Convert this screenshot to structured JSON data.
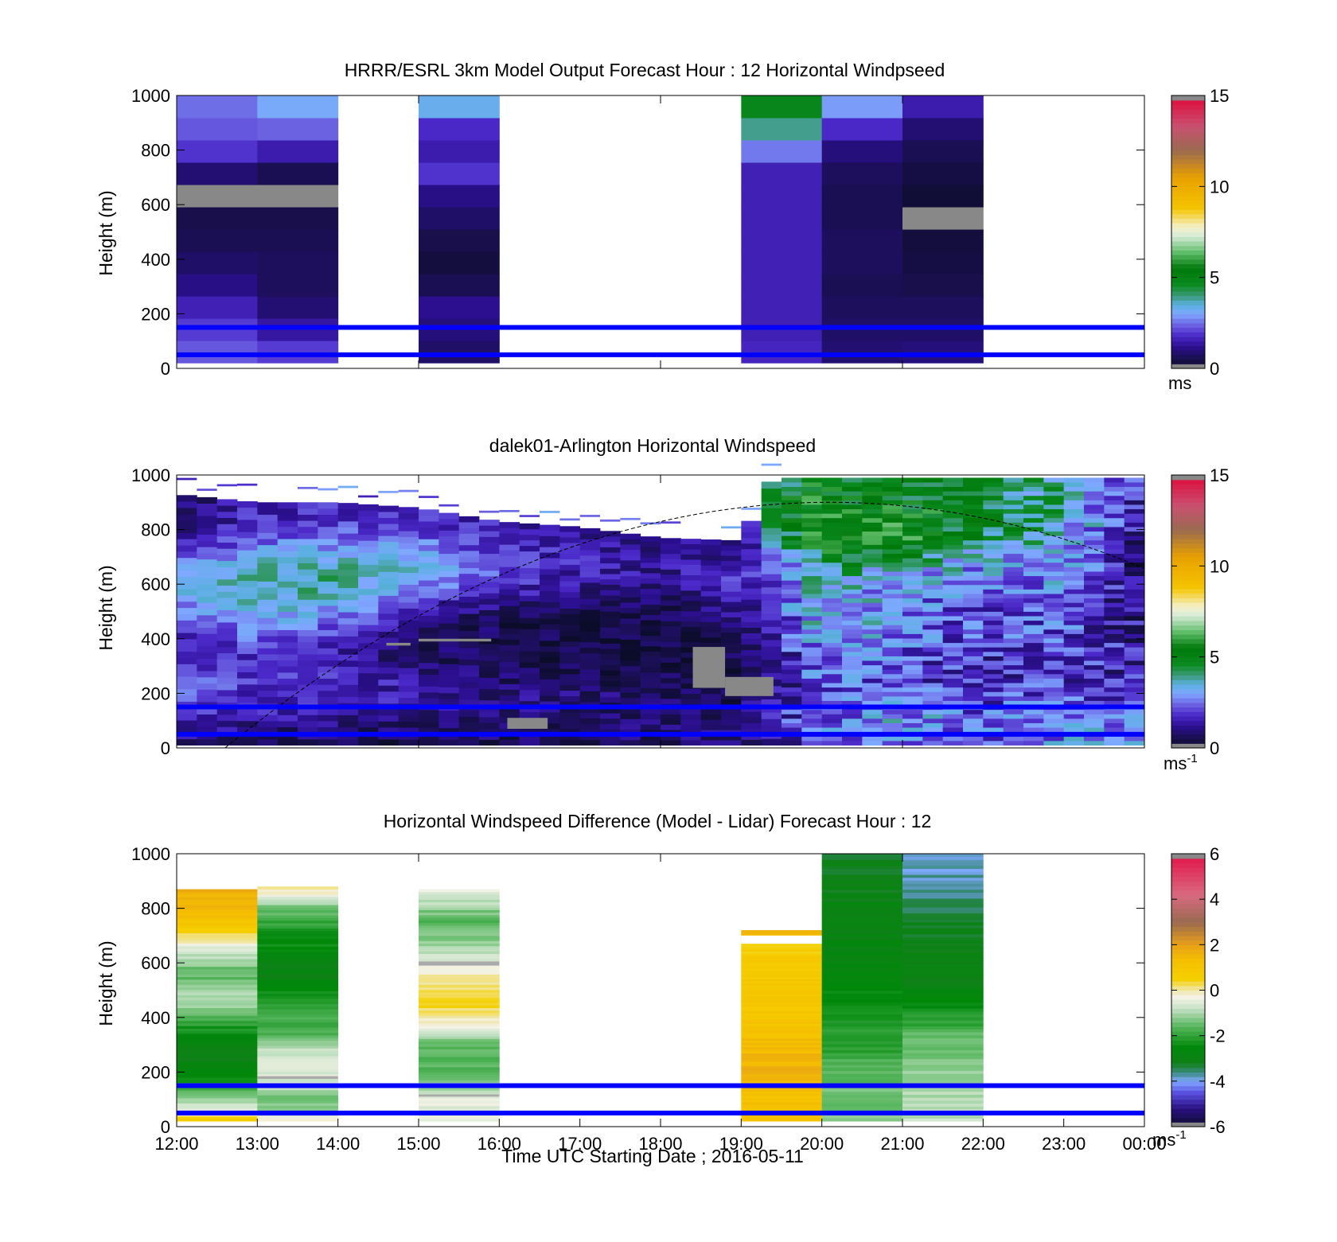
{
  "chart_data": [
    {
      "type": "heatmap",
      "title": "HRRR/ESRL 3km Model Output   Forecast Hour : 12 Horizontal Windpseed",
      "xlabel": "",
      "ylabel": "Height (m)",
      "xlim": [
        12,
        24
      ],
      "ylim": [
        0,
        1000
      ],
      "y_ticks": [
        "0",
        "200",
        "400",
        "600",
        "800",
        "1000"
      ],
      "colorbar": {
        "min": 0,
        "max": 15,
        "ticks": [
          "0",
          "5",
          "10",
          "15"
        ],
        "unit_label": "ms",
        "unit_sup": "",
        "palette": "speed"
      },
      "reference_lines_m": [
        50,
        150
      ],
      "cells": [
        {
          "t0": 12,
          "t1": 13,
          "z0": 20,
          "z1": 1000,
          "values": [
            2.3,
            2.0,
            1.6,
            1.1,
            0.8,
            0.6,
            0.5,
            "missing",
            0.9,
            1.9,
            2.3,
            2.5
          ]
        },
        {
          "t0": 13,
          "t1": 14,
          "z0": 20,
          "z1": 1000,
          "values": [
            2.0,
            1.4,
            0.9,
            0.7,
            0.7,
            0.6,
            0.5,
            "missing",
            0.6,
            1.5,
            2.4,
            3.1
          ]
        },
        {
          "t0": 15,
          "t1": 16,
          "z0": 20,
          "z1": 1000,
          "values": [
            0.8,
            1.0,
            1.2,
            0.6,
            0.3,
            0.5,
            0.8,
            1.1,
            1.9,
            1.5,
            1.8,
            3.3
          ]
        },
        {
          "t0": 19,
          "t1": 20,
          "z0": 20,
          "z1": 1000,
          "values": [
            1.7,
            1.6,
            1.6,
            1.6,
            1.6,
            1.6,
            1.6,
            1.6,
            1.6,
            2.6,
            3.9,
            4.8
          ]
        },
        {
          "t0": 20,
          "t1": 21,
          "z0": 20,
          "z1": 1000,
          "values": [
            0.9,
            0.8,
            0.7,
            0.6,
            0.7,
            0.7,
            0.6,
            0.6,
            0.7,
            1.0,
            1.8,
            2.9
          ]
        },
        {
          "t0": 21,
          "t1": 22,
          "z0": 20,
          "z1": 1000,
          "values": [
            1.0,
            0.8,
            0.7,
            0.5,
            0.4,
            0.3,
            "missing",
            0.2,
            0.4,
            0.6,
            0.9,
            1.5
          ]
        }
      ]
    },
    {
      "type": "heatmap",
      "title": "dalek01-Arlington  Horizontal Windspeed",
      "xlabel": "",
      "ylabel": "Height (m)",
      "xlim": [
        12,
        24
      ],
      "ylim": [
        0,
        1000
      ],
      "y_ticks": [
        "0",
        "200",
        "400",
        "600",
        "800",
        "1000"
      ],
      "colorbar": {
        "min": 0,
        "max": 15,
        "ticks": [
          "0",
          "5",
          "10",
          "15"
        ],
        "unit_label": "ms",
        "unit_sup": "-1",
        "palette": "speed"
      },
      "reference_lines_m": [
        50,
        150
      ],
      "profile_start": 12.0,
      "profile_end": 23.9,
      "profile_step_h": 0.25,
      "sample_heights_m": [
        20,
        60,
        100,
        140,
        180,
        220,
        260,
        300,
        340,
        380,
        420,
        460,
        500,
        540,
        580,
        620,
        660,
        700,
        740,
        780,
        820,
        860,
        900,
        940
      ],
      "keyframes": [
        {
          "t": 12.0,
          "top": 930,
          "speeds": [
            1.2,
            1.2,
            1.5,
            2.0,
            2.4,
            2.6,
            2.3,
            1.9,
            1.7,
            1.6,
            1.8,
            2.1,
            2.5,
            2.8,
            3.0,
            3.0,
            2.6,
            2.1,
            1.6,
            1.2,
            0.9,
            0.8,
            0.7,
            0.6
          ]
        },
        {
          "t": 13.0,
          "top": 900,
          "speeds": [
            0.8,
            1.0,
            1.3,
            1.6,
            1.7,
            1.8,
            1.8,
            1.7,
            1.9,
            2.2,
            2.6,
            3.0,
            3.3,
            3.6,
            3.8,
            3.8,
            3.6,
            3.2,
            2.7,
            2.2,
            1.9,
            1.7,
            1.6,
            1.5
          ]
        },
        {
          "t": 14.0,
          "top": 900,
          "speeds": [
            0.7,
            0.9,
            1.2,
            1.5,
            1.7,
            1.8,
            1.8,
            1.6,
            1.5,
            1.7,
            2.0,
            2.5,
            2.9,
            3.3,
            3.7,
            3.9,
            3.8,
            3.4,
            2.9,
            2.4,
            2.0,
            1.8,
            1.7,
            1.6
          ]
        },
        {
          "t": 15.0,
          "top": 880,
          "speeds": [
            0.6,
            0.8,
            1.0,
            1.3,
            1.5,
            1.4,
            1.2,
            1.0,
            0.8,
            0.7,
            0.8,
            1.1,
            1.5,
            2.0,
            2.6,
            3.0,
            3.2,
            3.0,
            2.7,
            2.3,
            2.0,
            1.8,
            1.6,
            1.5
          ]
        },
        {
          "t": 16.0,
          "top": 830,
          "speeds": [
            0.7,
            0.8,
            0.9,
            1.0,
            1.1,
            1.0,
            0.8,
            0.6,
            0.5,
            0.4,
            0.5,
            0.6,
            0.9,
            1.3,
            1.7,
            2.0,
            2.1,
            2.0,
            1.9,
            1.7,
            1.5,
            1.4,
            1.3,
            1.2
          ]
        },
        {
          "t": 17.0,
          "top": 810,
          "speeds": [
            0.8,
            0.8,
            0.9,
            1.0,
            1.0,
            0.9,
            0.7,
            0.5,
            0.4,
            0.4,
            0.4,
            0.5,
            0.7,
            1.0,
            1.3,
            1.5,
            1.6,
            1.6,
            1.5,
            1.4,
            1.3,
            1.2,
            1.1,
            1.0
          ]
        },
        {
          "t": 18.0,
          "top": 770,
          "speeds": [
            0.8,
            0.8,
            0.8,
            0.8,
            0.7,
            0.6,
            0.5,
            0.4,
            0.4,
            0.4,
            0.4,
            0.5,
            0.6,
            0.8,
            1.0,
            1.2,
            1.3,
            1.3,
            1.2,
            1.1,
            1.0,
            1.0,
            0.9,
            0.9
          ]
        },
        {
          "t": 19.0,
          "top": 760,
          "speeds": [
            1.0,
            1.0,
            0.9,
            0.9,
            0.6,
            0.5,
            0.4,
            0.4,
            0.5,
            0.7,
            0.9,
            1.0,
            1.2,
            1.5,
            1.7,
            2.0,
            1.6,
            1.2,
            1.0,
            0.9,
            0.9,
            0.9,
            0.9,
            0.9
          ]
        },
        {
          "t": 19.4,
          "top": 990,
          "speeds": [
            1.3,
            1.5,
            1.5,
            1.7,
            1.5,
            1.4,
            1.3,
            1.2,
            1.3,
            1.4,
            1.5,
            1.6,
            1.7,
            1.8,
            1.8,
            2.0,
            2.4,
            2.6,
            3.2,
            4.2,
            4.8,
            5.0,
            4.8,
            4.5
          ]
        },
        {
          "t": 20.0,
          "top": 990,
          "speeds": [
            2.0,
            2.3,
            2.6,
            2.6,
            2.4,
            2.3,
            2.4,
            2.6,
            2.8,
            3.0,
            3.2,
            3.4,
            3.5,
            3.5,
            3.6,
            3.8,
            4.2,
            4.8,
            5.4,
            5.6,
            5.7,
            5.6,
            5.4,
            5.2
          ]
        },
        {
          "t": 21.0,
          "top": 990,
          "speeds": [
            2.6,
            2.8,
            2.9,
            2.7,
            2.4,
            2.2,
            2.1,
            2.1,
            2.2,
            2.3,
            2.4,
            2.5,
            2.6,
            2.7,
            2.9,
            3.1,
            3.6,
            4.6,
            5.4,
            5.6,
            5.5,
            5.3,
            5.1,
            5.0
          ]
        },
        {
          "t": 22.0,
          "top": 990,
          "speeds": [
            2.3,
            2.4,
            2.4,
            2.2,
            1.9,
            1.7,
            1.6,
            1.7,
            1.8,
            1.9,
            2.0,
            2.1,
            2.2,
            2.3,
            2.4,
            2.6,
            2.9,
            3.3,
            3.9,
            4.4,
            4.8,
            4.9,
            4.8,
            4.6
          ]
        },
        {
          "t": 23.0,
          "top": 990,
          "speeds": [
            2.6,
            2.8,
            2.9,
            2.7,
            2.4,
            2.1,
            1.9,
            1.9,
            2.0,
            2.1,
            2.2,
            2.3,
            2.4,
            2.5,
            2.6,
            2.8,
            3.0,
            3.2,
            3.4,
            3.6,
            3.7,
            3.8,
            3.8,
            3.7
          ]
        },
        {
          "t": 23.9,
          "top": 990,
          "speeds": [
            2.9,
            3.0,
            2.8,
            2.4,
            2.0,
            1.7,
            1.5,
            1.4,
            1.3,
            1.3,
            1.3,
            1.2,
            1.1,
            1.0,
            0.9,
            0.8,
            0.8,
            0.9,
            1.0,
            1.2,
            1.4,
            1.6,
            1.7,
            1.7
          ]
        }
      ],
      "missing_patches": [
        {
          "t0": 18.4,
          "t1": 18.8,
          "z0": 220,
          "z1": 370
        },
        {
          "t0": 18.8,
          "t1": 19.4,
          "z0": 190,
          "z1": 260
        },
        {
          "t0": 16.1,
          "t1": 16.6,
          "z0": 70,
          "z1": 110
        },
        {
          "t0": 15.0,
          "t1": 15.9,
          "z0": 390,
          "z1": 400
        },
        {
          "t0": 14.6,
          "t1": 14.9,
          "z0": 375,
          "z1": 385
        }
      ],
      "boundary_layer_curve": {
        "t_start": 12.6,
        "t_peak": 20.1,
        "t_end": 24.0,
        "z_peak": 900,
        "z_end": 565
      }
    },
    {
      "type": "heatmap",
      "title": "Horizontal Windspeed Difference (Model - Lidar) Forecast Hour : 12",
      "xlabel": "Time UTC  Starting Date ; 2016-05-11",
      "ylabel": "Height (m)",
      "xlim": [
        12,
        24
      ],
      "ylim": [
        0,
        1000
      ],
      "y_ticks": [
        "0",
        "200",
        "400",
        "600",
        "800",
        "1000"
      ],
      "x_ticks": [
        "12:00",
        "13:00",
        "14:00",
        "15:00",
        "16:00",
        "17:00",
        "18:00",
        "19:00",
        "20:00",
        "21:00",
        "22:00",
        "23:00",
        "00:00"
      ],
      "colorbar": {
        "min": -6,
        "max": 6,
        "ticks": [
          "-6",
          "-4",
          "-2",
          "0",
          "2",
          "4",
          "6"
        ],
        "unit_label": "ms",
        "unit_sup": "-1",
        "palette": "diff"
      },
      "reference_lines_m": [
        50,
        150
      ],
      "columns": [
        {
          "t0": 12,
          "t1": 13,
          "top": 870,
          "keys": [
            [
              20,
              0.7
            ],
            [
              60,
              -0.4
            ],
            [
              100,
              -1.0
            ],
            [
              180,
              -2.6
            ],
            [
              280,
              -3.2
            ],
            [
              380,
              -2.0
            ],
            [
              460,
              -0.9
            ],
            [
              560,
              -1.6
            ],
            [
              640,
              -0.7
            ],
            [
              700,
              0.2
            ],
            [
              760,
              1.3
            ],
            [
              840,
              1.6
            ],
            [
              870,
              1.8
            ]
          ]
        },
        {
          "t0": 13,
          "t1": 14,
          "top": 880,
          "keys": [
            [
              20,
              0.2
            ],
            [
              60,
              -1.2
            ],
            [
              100,
              -1.5
            ],
            [
              160,
              -0.6
            ],
            [
              250,
              -0.5
            ],
            [
              340,
              -1.6
            ],
            [
              460,
              -2.1
            ],
            [
              560,
              -3.0
            ],
            [
              640,
              -2.6
            ],
            [
              720,
              -2.2
            ],
            [
              800,
              -1.4
            ],
            [
              850,
              -0.3
            ],
            [
              880,
              0.3
            ]
          ]
        },
        {
          "t0": 15,
          "t1": 16,
          "top": 870,
          "keys": [
            [
              20,
              -0.3
            ],
            [
              100,
              -0.5
            ],
            [
              200,
              -1.6
            ],
            [
              300,
              -1.5
            ],
            [
              360,
              -0.5
            ],
            [
              440,
              0.4
            ],
            [
              520,
              0.2
            ],
            [
              600,
              -0.4
            ],
            [
              680,
              -1.3
            ],
            [
              760,
              -1.6
            ],
            [
              840,
              -0.7
            ],
            [
              870,
              -0.3
            ]
          ]
        },
        {
          "t0": 19,
          "t1": 20,
          "top": 720,
          "keys": [
            [
              20,
              1.2
            ],
            [
              120,
              1.2
            ],
            [
              220,
              1.6
            ],
            [
              320,
              1.3
            ],
            [
              420,
              1.0
            ],
            [
              520,
              0.9
            ],
            [
              620,
              0.7
            ],
            [
              660,
              0.6
            ],
            [
              720,
              1.6
            ]
          ]
        },
        {
          "t0": 20,
          "t1": 21,
          "top": 1000,
          "keys": [
            [
              20,
              -1.3
            ],
            [
              120,
              -1.4
            ],
            [
              220,
              -1.7
            ],
            [
              320,
              -2.1
            ],
            [
              420,
              -2.3
            ],
            [
              520,
              -2.6
            ],
            [
              620,
              -2.8
            ],
            [
              720,
              -2.9
            ],
            [
              820,
              -3.0
            ],
            [
              920,
              -3.1
            ],
            [
              1000,
              -3.2
            ]
          ]
        },
        {
          "t0": 21,
          "t1": 22,
          "top": 1000,
          "keys": [
            [
              20,
              -0.8
            ],
            [
              120,
              -1.0
            ],
            [
              220,
              -1.2
            ],
            [
              320,
              -1.5
            ],
            [
              420,
              -2.2
            ],
            [
              520,
              -2.9
            ],
            [
              620,
              -3.2
            ],
            [
              720,
              -3.1
            ],
            [
              780,
              -3.3
            ],
            [
              860,
              -3.6
            ],
            [
              940,
              -3.8
            ],
            [
              1000,
              -4.0
            ]
          ]
        }
      ],
      "missing_bands": [
        {
          "t0": 13,
          "t1": 14,
          "z0": 175,
          "z1": 185
        },
        {
          "t0": 15,
          "t1": 16,
          "z0": 590,
          "z1": 605
        },
        {
          "t0": 15,
          "t1": 16,
          "z0": 110,
          "z1": 118
        }
      ]
    }
  ]
}
